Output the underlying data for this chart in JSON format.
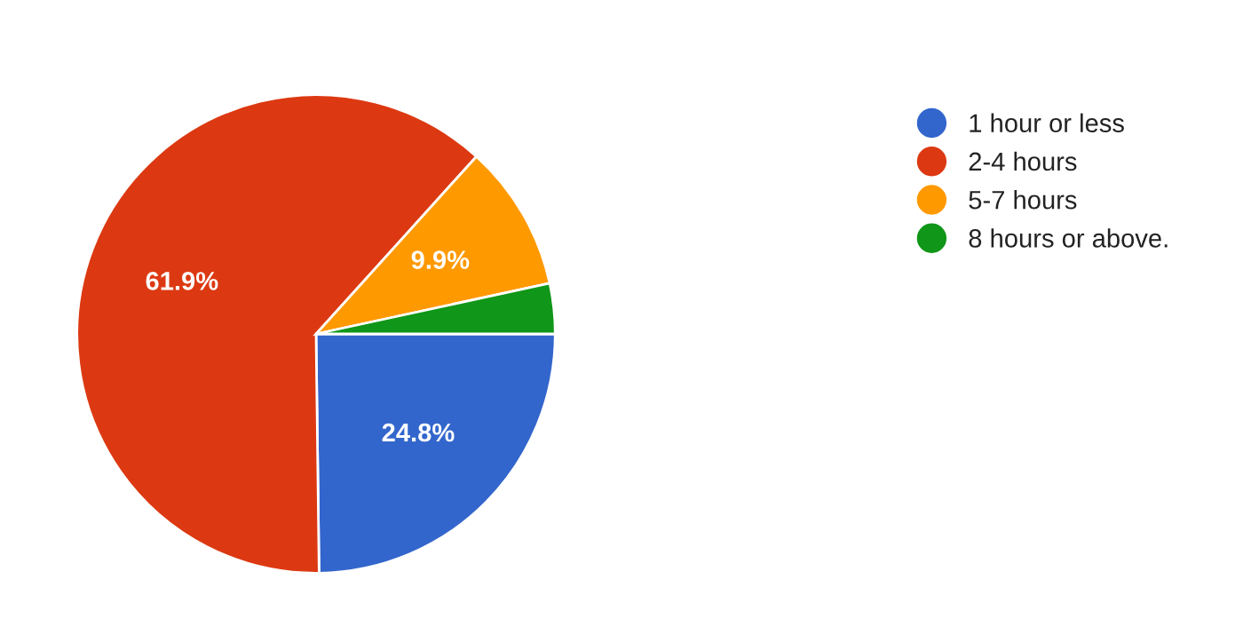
{
  "chart_data": {
    "type": "pie",
    "categories": [
      "1 hour or less",
      "2-4 hours",
      "5-7 hours",
      "8 hours or above."
    ],
    "values": [
      24.8,
      61.9,
      9.9,
      3.4
    ],
    "colors": [
      "#3366cc",
      "#dc3912",
      "#ff9900",
      "#109618"
    ],
    "value_labels": [
      "24.8%",
      "61.9%",
      "9.9%",
      null
    ],
    "legend": "top right"
  }
}
